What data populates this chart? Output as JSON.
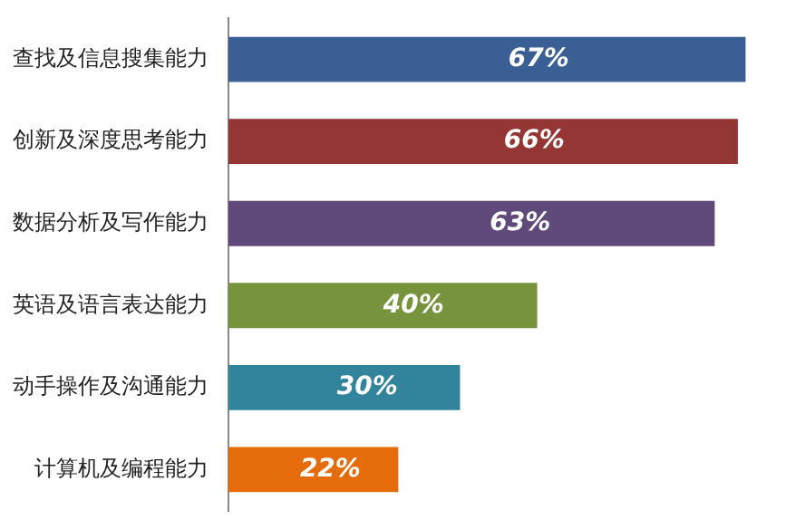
{
  "chart_data": {
    "type": "bar",
    "orientation": "horizontal",
    "categories": [
      "查找及信息搜集能力",
      "创新及深度思考能力",
      "数据分析及写作能力",
      "英语及语言表达能力",
      "动手操作及沟通能力",
      "计算机及编程能力"
    ],
    "values": [
      67,
      66,
      63,
      40,
      30,
      22
    ],
    "colors": [
      "#3a5f95",
      "#943634",
      "#5f4a7b",
      "#77933c",
      "#31849b",
      "#e46c0a"
    ],
    "value_labels": [
      "67%",
      "66%",
      "63%",
      "40%",
      "30%",
      "22%"
    ],
    "legend": false
  }
}
